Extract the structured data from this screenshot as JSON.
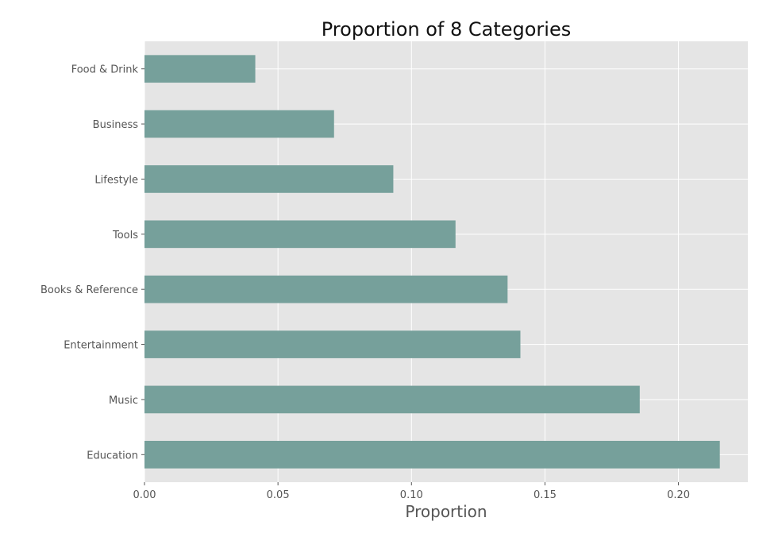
{
  "chart_data": {
    "type": "bar",
    "orientation": "horizontal",
    "title": "Proportion of 8 Categories",
    "xlabel": "Proportion",
    "ylabel": "",
    "categories": [
      "Food & Drink",
      "Business",
      "Lifestyle",
      "Tools",
      "Books & Reference",
      "Entertainment",
      "Music",
      "Education"
    ],
    "values": [
      0.0415,
      0.071,
      0.0932,
      0.1165,
      0.136,
      0.1408,
      0.1855,
      0.2155
    ],
    "xlim": [
      0,
      0.226
    ],
    "xticks": [
      0,
      0.05,
      0.1,
      0.15,
      0.2
    ],
    "xtick_labels": [
      "0.00",
      "0.05",
      "0.10",
      "0.15",
      "0.20"
    ],
    "grid": true,
    "legend": "none",
    "colors": {
      "bar": "#76a09b",
      "plot_background": "#e5e5e5",
      "grid": "#ffffff",
      "text": "#555555",
      "title": "#111111"
    }
  }
}
